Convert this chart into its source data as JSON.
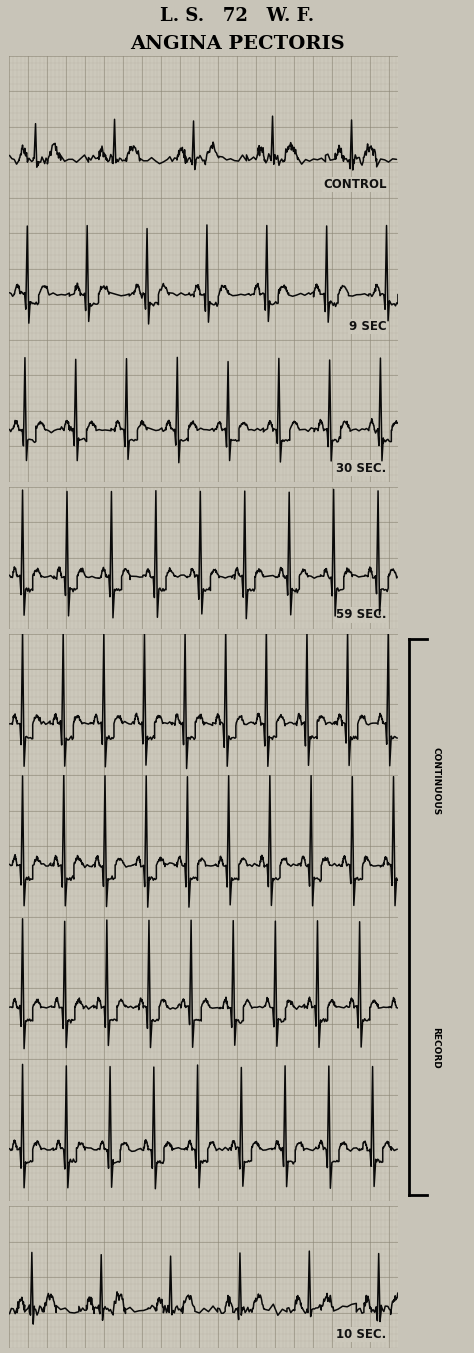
{
  "title_line1": "L. S.   72   W. F.",
  "title_line2": "ANGINA PECTORIS",
  "bg_color": "#c8c4b8",
  "strip_bg": "#ccc8bb",
  "grid_major_color": "#8a8474",
  "grid_minor_color": "#aaa494",
  "ecg_color": "#0a0a0a",
  "fig_width": 4.74,
  "fig_height": 13.53,
  "dpi": 100,
  "strips": [
    {
      "hr": 72,
      "type": "control",
      "label": "CONTROL",
      "amp": 0.55,
      "seed": 3
    },
    {
      "hr": 95,
      "type": "early",
      "label": "9 SEC",
      "amp": 1.1,
      "seed": 10
    },
    {
      "hr": 112,
      "type": "mid",
      "label": "30 SEC.",
      "amp": 1.25,
      "seed": 17
    },
    {
      "hr": 128,
      "type": "vigorous",
      "label": "59 SEC.",
      "amp": 1.4,
      "seed": 24
    },
    {
      "hr": 140,
      "type": "vigorous",
      "label": "",
      "amp": 1.5,
      "seed": 31
    },
    {
      "hr": 138,
      "type": "vigorous",
      "label": "",
      "amp": 1.45,
      "seed": 38
    },
    {
      "hr": 135,
      "type": "vigorous",
      "label": "",
      "amp": 1.4,
      "seed": 45
    },
    {
      "hr": 130,
      "type": "vigorous",
      "label": "",
      "amp": 1.35,
      "seed": 52
    },
    {
      "hr": 82,
      "type": "recovery",
      "label": "10 SEC.",
      "amp": 0.65,
      "seed": 59
    }
  ],
  "sep_after": [
    2,
    3,
    7
  ],
  "bracket_strips": [
    4,
    7
  ]
}
